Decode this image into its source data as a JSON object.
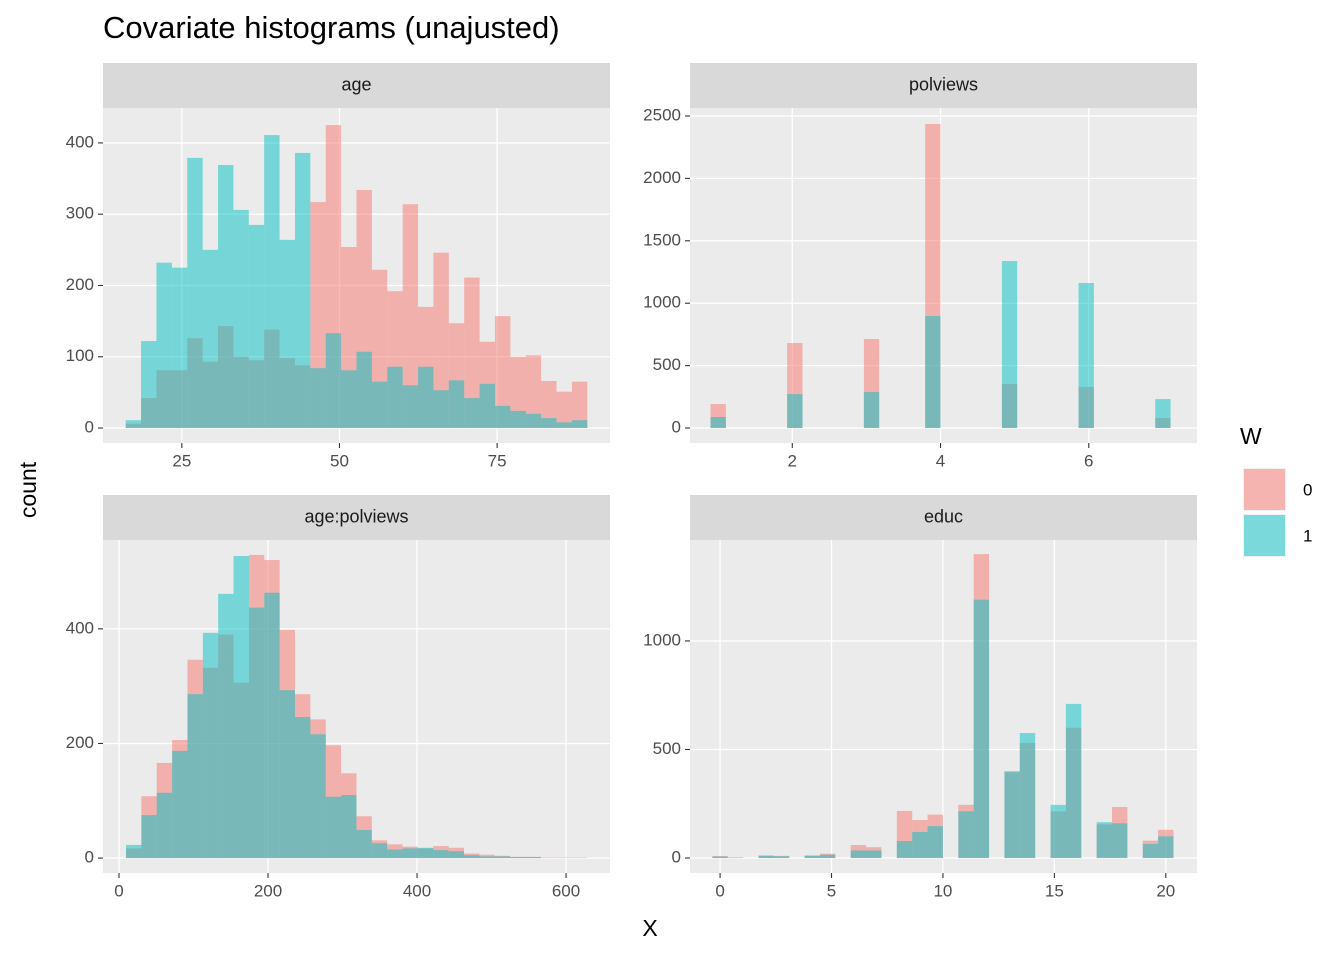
{
  "title": "Covariate histograms (unajusted)",
  "x_label": "X",
  "y_label": "count",
  "legend": {
    "title": "W",
    "position": "right"
  },
  "chart_data": [
    {
      "type": "histogram",
      "title": "age",
      "bins": [
        16.1,
        18.54,
        20.98,
        23.42,
        25.86,
        28.3,
        30.74,
        33.18,
        35.62,
        38.06,
        40.5,
        42.94,
        45.38,
        47.82,
        50.26,
        52.7,
        55.14,
        57.58,
        60.02,
        62.46,
        64.9,
        67.34,
        69.78,
        72.22,
        74.66,
        77.1,
        79.54,
        81.98,
        84.42,
        86.86,
        89.3
      ],
      "series": [
        {
          "name": "0",
          "color": "#F8766D",
          "values": [
            6,
            42,
            81,
            81,
            126,
            93,
            143,
            100,
            95,
            138,
            98,
            88,
            317,
            425,
            254,
            334,
            222,
            192,
            314,
            170,
            246,
            147,
            211,
            121,
            157,
            100,
            102,
            66,
            51,
            65
          ]
        },
        {
          "name": "1",
          "color": "#00BFC4",
          "values": [
            11,
            122,
            232,
            225,
            379,
            250,
            369,
            306,
            285,
            411,
            264,
            386,
            84,
            133,
            81,
            107,
            65,
            86,
            60,
            86,
            53,
            67,
            42,
            62,
            31,
            24,
            20,
            14,
            8,
            11
          ]
        }
      ],
      "xlim": [
        12.5,
        92.9
      ],
      "xticks": [
        25,
        50,
        75
      ],
      "ylim": [
        -21,
        449
      ],
      "yticks": [
        0,
        100,
        200,
        300,
        400
      ],
      "grid": true
    },
    {
      "type": "histogram",
      "title": "polviews",
      "bins": [
        0.897,
        1.104,
        1.311,
        1.518,
        1.724,
        1.931,
        2.138,
        2.345,
        2.552,
        2.759,
        2.966,
        3.172,
        3.379,
        3.586,
        3.793,
        4,
        4.207,
        4.414,
        4.621,
        4.828,
        5.034,
        5.241,
        5.448,
        5.655,
        5.862,
        6.069,
        6.276,
        6.483,
        6.69,
        6.897,
        7.103
      ],
      "series": [
        {
          "name": "0",
          "color": "#F8766D",
          "values": [
            192,
            0,
            0,
            0,
            0,
            681,
            0,
            0,
            0,
            0,
            713,
            0,
            0,
            0,
            2436,
            0,
            0,
            0,
            0,
            353,
            0,
            0,
            0,
            0,
            329,
            0,
            0,
            0,
            0,
            80
          ]
        },
        {
          "name": "1",
          "color": "#00BFC4",
          "values": [
            88,
            0,
            0,
            0,
            0,
            272,
            0,
            0,
            0,
            0,
            288,
            0,
            0,
            0,
            897,
            0,
            0,
            0,
            0,
            1338,
            0,
            0,
            0,
            0,
            1162,
            0,
            0,
            0,
            0,
            232
          ]
        }
      ],
      "xlim": [
        0.62,
        7.46
      ],
      "xticks": [
        2,
        4,
        6
      ],
      "ylim": [
        -120,
        2564
      ],
      "yticks": [
        0,
        500,
        1000,
        1500,
        2000,
        2500
      ],
      "grid": true
    },
    {
      "type": "histogram",
      "title": "age:polviews",
      "bins": [
        9.4,
        30.0,
        50.6,
        71.3,
        91.9,
        112.5,
        133.1,
        153.7,
        174.4,
        195.0,
        215.6,
        236.2,
        256.8,
        277.5,
        298.1,
        318.7,
        339.3,
        359.9,
        380.6,
        401.2,
        421.8,
        442.4,
        463.0,
        483.7,
        504.3,
        524.9,
        545.5,
        566.1,
        586.8,
        607.4,
        628.0
      ],
      "series": [
        {
          "name": "0",
          "color": "#F8766D",
          "values": [
            17,
            108,
            166,
            206,
            346,
            332,
            390,
            306,
            529,
            520,
            398,
            286,
            242,
            197,
            148,
            73,
            31,
            24,
            20,
            17,
            21,
            18,
            8,
            6,
            4,
            2,
            2,
            1,
            1,
            1
          ]
        },
        {
          "name": "1",
          "color": "#00BFC4",
          "values": [
            23,
            75,
            114,
            187,
            286,
            393,
            461,
            527,
            437,
            463,
            293,
            246,
            216,
            107,
            110,
            49,
            26,
            15,
            17,
            18,
            14,
            12,
            5,
            3,
            3,
            2,
            2,
            0,
            0,
            0
          ]
        }
      ],
      "xlim": [
        -21.5,
        659
      ],
      "xticks": [
        0,
        200,
        400,
        600
      ],
      "ylim": [
        -26,
        555
      ],
      "yticks": [
        0,
        200,
        400
      ],
      "grid": true
    },
    {
      "type": "histogram",
      "title": "educ",
      "bins": [
        -0.345,
        0.345,
        1.034,
        1.724,
        2.414,
        3.103,
        3.793,
        4.483,
        5.172,
        5.862,
        6.552,
        7.241,
        7.931,
        8.621,
        9.31,
        10,
        10.69,
        11.379,
        12.069,
        12.759,
        13.448,
        14.138,
        14.828,
        15.517,
        16.207,
        16.897,
        17.586,
        18.276,
        18.966,
        19.655,
        20.345
      ],
      "series": [
        {
          "name": "0",
          "color": "#F8766D",
          "values": [
            9,
            2,
            0,
            12,
            10,
            0,
            12,
            20,
            0,
            60,
            50,
            0,
            217,
            175,
            200,
            0,
            245,
            1400,
            0,
            395,
            530,
            0,
            215,
            600,
            0,
            155,
            235,
            0,
            80,
            130
          ]
        },
        {
          "name": "1",
          "color": "#00BFC4",
          "values": [
            7,
            2,
            0,
            10,
            8,
            0,
            10,
            15,
            0,
            35,
            35,
            0,
            78,
            120,
            147,
            0,
            215,
            1190,
            0,
            400,
            576,
            0,
            245,
            710,
            0,
            165,
            160,
            0,
            65,
            100
          ]
        }
      ],
      "xlim": [
        -1.35,
        21.4
      ],
      "xticks": [
        0,
        5,
        10,
        15,
        20
      ],
      "ylim": [
        -69,
        1465
      ],
      "yticks": [
        0,
        500,
        1000
      ],
      "grid": true
    }
  ]
}
